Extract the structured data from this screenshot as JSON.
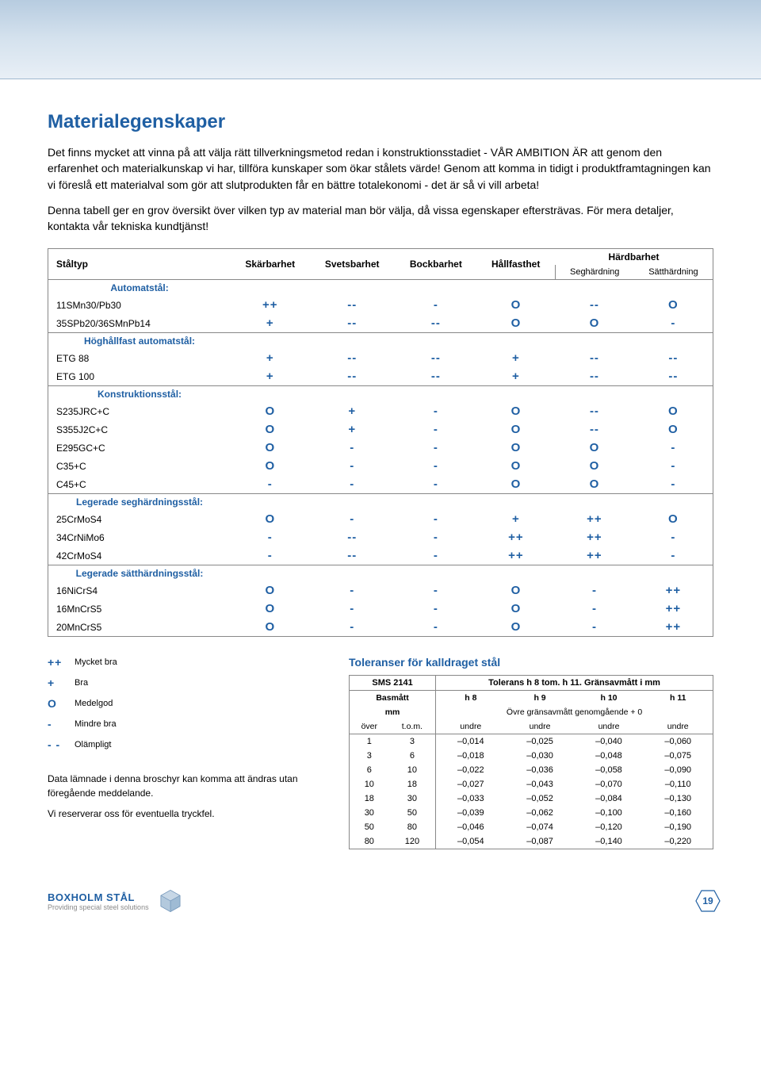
{
  "title": "Materialegenskaper",
  "para1": "Det finns mycket att vinna på att välja rätt tillverkningsmetod redan i konstruktionsstadiet - VÅR AMBITION ÄR att genom den erfarenhet och materialkunskap vi har, tillföra kunskaper som ökar stålets värde! Genom att komma in tidigt i produktframtagningen kan vi föreslå ett materialval som gör att slutprodukten får en bättre totalekonomi - det är så vi vill arbeta!",
  "para2": "Denna tabell ger en grov översikt över vilken typ av material man bör välja, då vissa egenskaper eftersträvas. För mera detaljer, kontakta vår tekniska kundtjänst!",
  "columns": {
    "c1": "Ståltyp",
    "c2": "Skärbarhet",
    "c3": "Svetsbarhet",
    "c4": "Bockbarhet",
    "c5": "Hållfasthet",
    "c6": "Härdbarhet",
    "c6a": "Seghärdning",
    "c6b": "Sätthärdning"
  },
  "groups": [
    {
      "label": "Automatstål:",
      "rows": [
        {
          "name": "11SMn30/Pb30",
          "v": [
            "++",
            "--",
            "-",
            "O",
            "--",
            "O"
          ]
        },
        {
          "name": "35SPb20/36SMnPb14",
          "v": [
            "+",
            "--",
            "--",
            "O",
            "O",
            "-"
          ]
        }
      ]
    },
    {
      "label": "Höghållfast automatstål:",
      "rows": [
        {
          "name": "ETG 88",
          "v": [
            "+",
            "--",
            "--",
            "+",
            "--",
            "--"
          ]
        },
        {
          "name": "ETG 100",
          "v": [
            "+",
            "--",
            "--",
            "+",
            "--",
            "--"
          ]
        }
      ]
    },
    {
      "label": "Konstruktionsstål:",
      "rows": [
        {
          "name": "S235JRC+C",
          "v": [
            "O",
            "+",
            "-",
            "O",
            "--",
            "O"
          ]
        },
        {
          "name": "S355J2C+C",
          "v": [
            "O",
            "+",
            "-",
            "O",
            "--",
            "O"
          ]
        },
        {
          "name": "E295GC+C",
          "v": [
            "O",
            "-",
            "-",
            "O",
            "O",
            "-"
          ]
        },
        {
          "name": "C35+C",
          "v": [
            "O",
            "-",
            "-",
            "O",
            "O",
            "-"
          ]
        },
        {
          "name": "C45+C",
          "v": [
            "-",
            "-",
            "-",
            "O",
            "O",
            "-"
          ]
        }
      ]
    },
    {
      "label": "Legerade seghärdningsstål:",
      "rows": [
        {
          "name": "25CrMoS4",
          "v": [
            "O",
            "-",
            "-",
            "+",
            "++",
            "O"
          ]
        },
        {
          "name": "34CrNiMo6",
          "v": [
            "-",
            "--",
            "-",
            "++",
            "++",
            "-"
          ]
        },
        {
          "name": "42CrMoS4",
          "v": [
            "-",
            "--",
            "-",
            "++",
            "++",
            "-"
          ]
        }
      ]
    },
    {
      "label": "Legerade sätthärdningsstål:",
      "rows": [
        {
          "name": "16NiCrS4",
          "v": [
            "O",
            "-",
            "-",
            "O",
            "-",
            "++"
          ]
        },
        {
          "name": "16MnCrS5",
          "v": [
            "O",
            "-",
            "-",
            "O",
            "-",
            "++"
          ]
        },
        {
          "name": "20MnCrS5",
          "v": [
            "O",
            "-",
            "-",
            "O",
            "-",
            "++"
          ]
        }
      ]
    }
  ],
  "legend": [
    {
      "sym": "++",
      "text": "Mycket bra"
    },
    {
      "sym": "+",
      "text": "Bra"
    },
    {
      "sym": "O",
      "text": "Medelgod"
    },
    {
      "sym": "-",
      "text": "Mindre bra"
    },
    {
      "sym": "- -",
      "text": "Olämpligt"
    }
  ],
  "disclaimer1": "Data lämnade i denna broschyr kan komma att ändras utan föregående meddelande.",
  "disclaimer2": "Vi reserverar oss för eventuella tryckfel.",
  "tolerance": {
    "title": "Toleranser för kalldraget stål",
    "hdr_left": "SMS 2141",
    "hdr_right": "Tolerans h 8 tom. h 11. Gränsavmått i mm",
    "basmatt": "Basmått",
    "mm": "mm",
    "over": "över",
    "tom": "t.o.m.",
    "hcols": [
      "h 8",
      "h 9",
      "h 10",
      "h 11"
    ],
    "sub": "Övre gränsavmått genomgående + 0",
    "undre": "undre",
    "rows": [
      {
        "r": [
          "1",
          "3",
          "–0,014",
          "–0,025",
          "–0,040",
          "–0,060"
        ]
      },
      {
        "r": [
          "3",
          "6",
          "–0,018",
          "–0,030",
          "–0,048",
          "–0,075"
        ]
      },
      {
        "r": [
          "6",
          "10",
          "–0,022",
          "–0,036",
          "–0,058",
          "–0,090"
        ]
      },
      {
        "r": [
          "10",
          "18",
          "–0,027",
          "–0,043",
          "–0,070",
          "–0,110"
        ]
      },
      {
        "r": [
          "18",
          "30",
          "–0,033",
          "–0,052",
          "–0,084",
          "–0,130"
        ]
      },
      {
        "r": [
          "30",
          "50",
          "–0,039",
          "–0,062",
          "–0,100",
          "–0,160"
        ]
      },
      {
        "r": [
          "50",
          "80",
          "–0,046",
          "–0,074",
          "–0,120",
          "–0,190"
        ]
      },
      {
        "r": [
          "80",
          "120",
          "–0,054",
          "–0,087",
          "–0,140",
          "–0,220"
        ]
      }
    ]
  },
  "footer": {
    "brand1": "BOXHOLM STÅL",
    "brand2": "Providing special steel solutions",
    "page": "19"
  },
  "colors": {
    "accent": "#1f5fa3",
    "border": "#888888"
  }
}
